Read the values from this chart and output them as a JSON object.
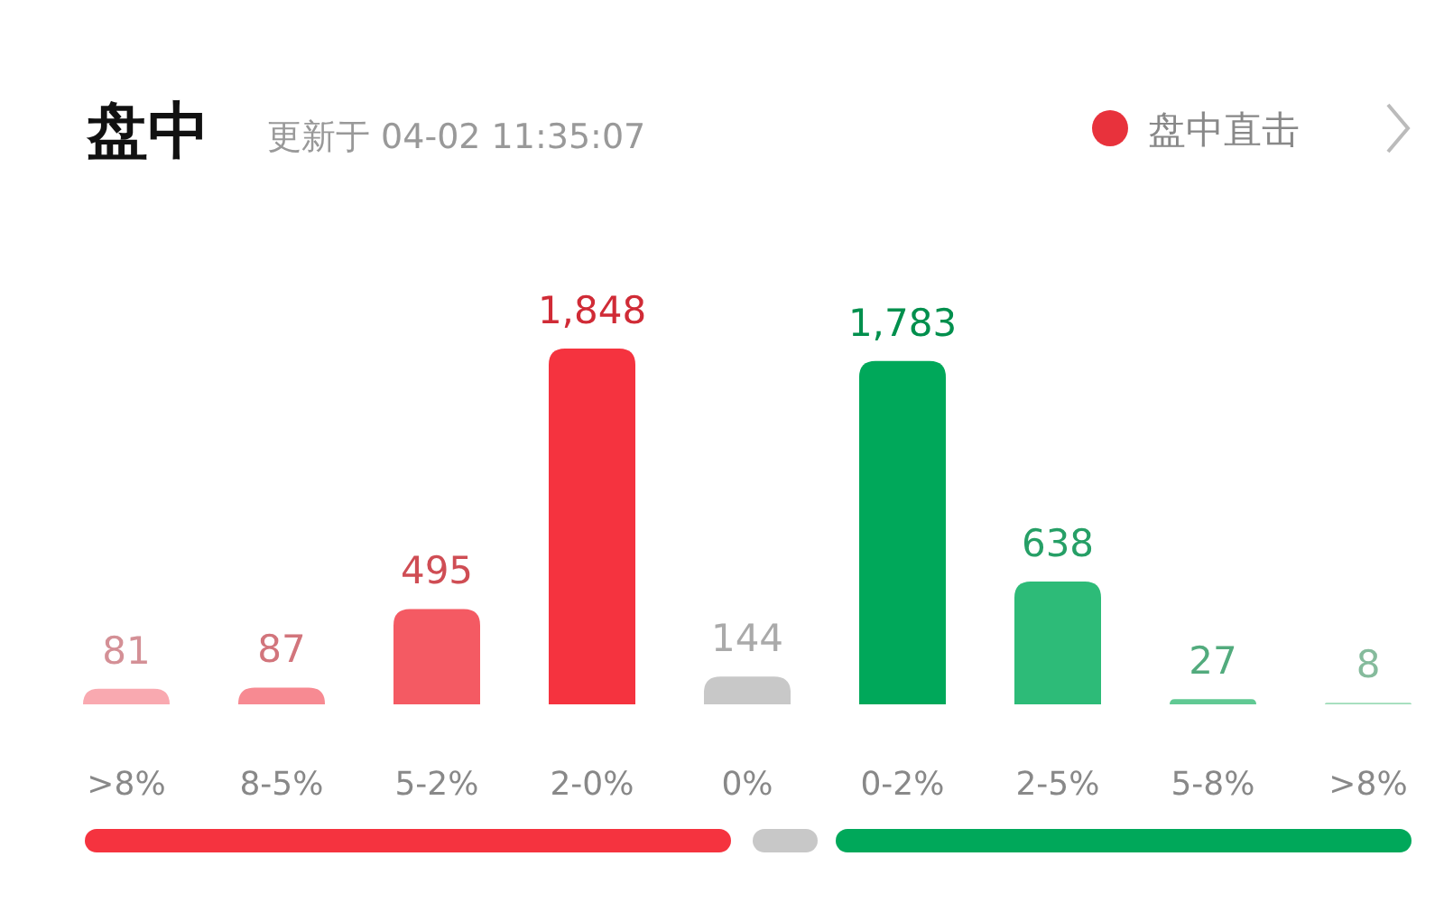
{
  "chart_data": [
    {
      "type": "bar",
      "title": "盘中",
      "subtitle": "更新于 04-02 11:35:07",
      "annotations": [
        "盘中直击"
      ],
      "categories": [
        ">8%",
        "8-5%",
        "5-2%",
        "2-0%",
        "0%",
        "0-2%",
        "2-5%",
        "5-8%",
        ">8%"
      ],
      "values": [
        81,
        87,
        495,
        1848,
        144,
        1783,
        638,
        27,
        8
      ],
      "colors": [
        "#f9a9b0",
        "#f78a92",
        "#f45a63",
        "#f5333f",
        "#c8c8c8",
        "#00a85a",
        "#2dbb78",
        "#60c993",
        "#9ddcb8"
      ],
      "value_labels": [
        "81",
        "87",
        "495",
        "1,848",
        "144",
        "1,783",
        "638",
        "27",
        "8"
      ],
      "relative": false
    }
  ]
}
